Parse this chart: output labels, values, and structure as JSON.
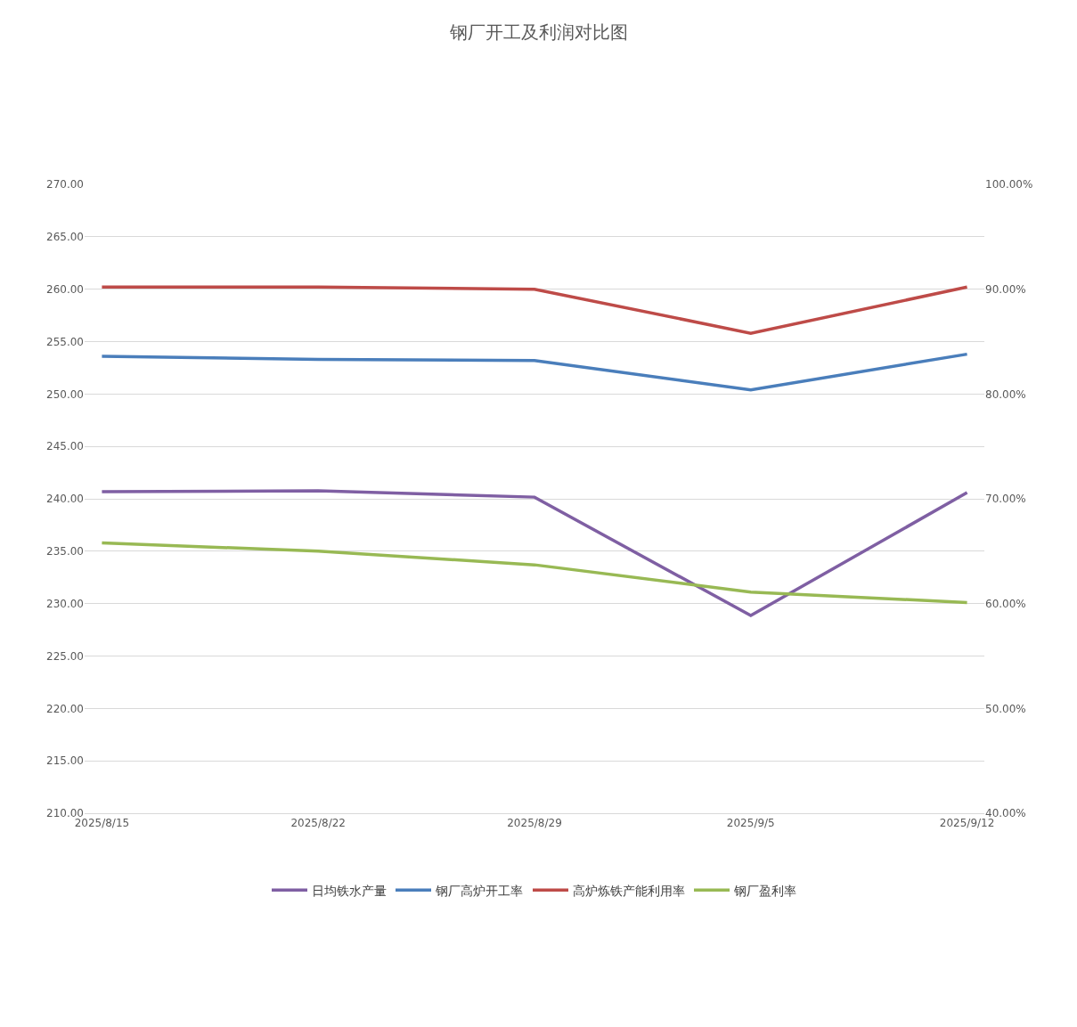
{
  "chart_data": {
    "type": "line",
    "title": "钢厂开工及利润对比图",
    "categories": [
      "2025/8/15",
      "2025/8/22",
      "2025/8/29",
      "2025/9/5",
      "2025/9/12"
    ],
    "series": [
      {
        "name": "日均铁水产量",
        "color": "#7f5fa3",
        "values": [
          240.67,
          240.76,
          240.16,
          228.86,
          240.59
        ]
      },
      {
        "name": "钢厂高炉开工率",
        "color": "#4a7ebb",
        "axis": "y2",
        "values": [
          83.6,
          83.3,
          83.2,
          80.4,
          83.8
        ]
      },
      {
        "name": "高炉炼铁产能利用率",
        "color": "#be4b48",
        "axis": "y2",
        "values": [
          90.2,
          90.2,
          90.0,
          85.8,
          90.2
        ]
      },
      {
        "name": "钢厂盈利率",
        "color": "#98b954",
        "axis": "y2",
        "values": [
          65.8,
          65.0,
          63.7,
          61.1,
          60.1
        ]
      }
    ],
    "ylim": [
      210,
      270
    ],
    "yticks": [
      {
        "value": 210,
        "label": "210.00"
      },
      {
        "value": 215,
        "label": "215.00"
      },
      {
        "value": 220,
        "label": "220.00"
      },
      {
        "value": 225,
        "label": "225.00"
      },
      {
        "value": 230,
        "label": "230.00"
      },
      {
        "value": 235,
        "label": "235.00"
      },
      {
        "value": 240,
        "label": "240.00"
      },
      {
        "value": 245,
        "label": "245.00"
      },
      {
        "value": 250,
        "label": "250.00"
      },
      {
        "value": 255,
        "label": "255.00"
      },
      {
        "value": 260,
        "label": "260.00"
      },
      {
        "value": 265,
        "label": "265.00"
      },
      {
        "value": 270,
        "label": "270.00"
      }
    ],
    "y2lim": [
      40,
      100
    ],
    "y2ticks": [
      {
        "value": 40,
        "label": "40.00%"
      },
      {
        "value": 50,
        "label": "50.00%"
      },
      {
        "value": 60,
        "label": "60.00%"
      },
      {
        "value": 70,
        "label": "70.00%"
      },
      {
        "value": 80,
        "label": "80.00%"
      },
      {
        "value": 90,
        "label": "90.00%"
      },
      {
        "value": 100,
        "label": "100.00%"
      }
    ],
    "grid": "y",
    "legend": "bottom",
    "marker": "none",
    "line_style": "solid"
  }
}
